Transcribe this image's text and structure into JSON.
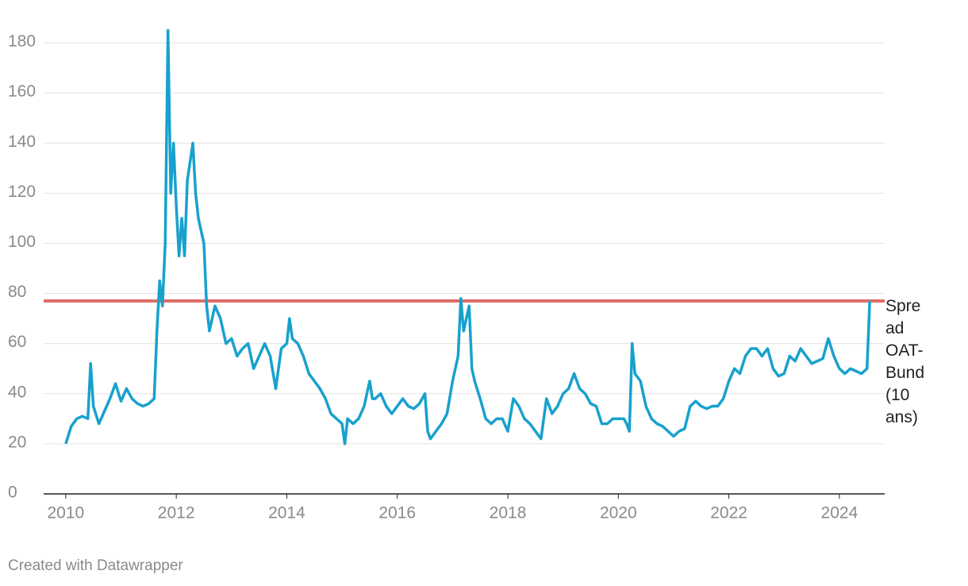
{
  "chart_data": {
    "type": "line",
    "x": [
      2010.0,
      2010.1,
      2010.2,
      2010.3,
      2010.4,
      2010.45,
      2010.5,
      2010.6,
      2010.7,
      2010.8,
      2010.9,
      2011.0,
      2011.1,
      2011.2,
      2011.3,
      2011.4,
      2011.5,
      2011.6,
      2011.65,
      2011.7,
      2011.75,
      2011.8,
      2011.85,
      2011.9,
      2011.95,
      2012.0,
      2012.05,
      2012.1,
      2012.15,
      2012.2,
      2012.3,
      2012.35,
      2012.4,
      2012.5,
      2012.55,
      2012.6,
      2012.7,
      2012.8,
      2012.9,
      2013.0,
      2013.1,
      2013.2,
      2013.3,
      2013.4,
      2013.5,
      2013.6,
      2013.7,
      2013.8,
      2013.9,
      2014.0,
      2014.05,
      2014.1,
      2014.2,
      2014.3,
      2014.4,
      2014.5,
      2014.6,
      2014.7,
      2014.8,
      2014.9,
      2015.0,
      2015.05,
      2015.1,
      2015.2,
      2015.3,
      2015.4,
      2015.5,
      2015.55,
      2015.6,
      2015.7,
      2015.8,
      2015.9,
      2016.0,
      2016.1,
      2016.2,
      2016.3,
      2016.4,
      2016.5,
      2016.55,
      2016.6,
      2016.7,
      2016.8,
      2016.9,
      2017.0,
      2017.1,
      2017.15,
      2017.2,
      2017.3,
      2017.35,
      2017.4,
      2017.5,
      2017.6,
      2017.7,
      2017.8,
      2017.9,
      2018.0,
      2018.1,
      2018.2,
      2018.3,
      2018.4,
      2018.5,
      2018.6,
      2018.7,
      2018.8,
      2018.9,
      2019.0,
      2019.1,
      2019.2,
      2019.3,
      2019.4,
      2019.5,
      2019.6,
      2019.7,
      2019.8,
      2019.9,
      2020.0,
      2020.1,
      2020.15,
      2020.2,
      2020.25,
      2020.3,
      2020.4,
      2020.5,
      2020.6,
      2020.7,
      2020.8,
      2020.9,
      2021.0,
      2021.1,
      2021.2,
      2021.3,
      2021.4,
      2021.5,
      2021.6,
      2021.7,
      2021.8,
      2021.9,
      2022.0,
      2022.1,
      2022.2,
      2022.3,
      2022.4,
      2022.5,
      2022.6,
      2022.7,
      2022.8,
      2022.9,
      2023.0,
      2023.1,
      2023.2,
      2023.3,
      2023.4,
      2023.5,
      2023.6,
      2023.7,
      2023.8,
      2023.9,
      2024.0,
      2024.1,
      2024.2,
      2024.3,
      2024.4,
      2024.5,
      2024.55
    ],
    "series": [
      {
        "name": "Spread OAT-Bund (10 ans)",
        "color": "#18a1cd",
        "values": [
          20,
          27,
          30,
          31,
          30,
          52,
          35,
          28,
          33,
          38,
          44,
          37,
          42,
          38,
          36,
          35,
          36,
          38,
          65,
          85,
          75,
          100,
          185,
          120,
          140,
          115,
          95,
          110,
          95,
          125,
          140,
          120,
          110,
          100,
          75,
          65,
          75,
          70,
          60,
          62,
          55,
          58,
          60,
          50,
          55,
          60,
          55,
          42,
          58,
          60,
          70,
          62,
          60,
          55,
          48,
          45,
          42,
          38,
          32,
          30,
          28,
          20,
          30,
          28,
          30,
          35,
          45,
          38,
          38,
          40,
          35,
          32,
          35,
          38,
          35,
          34,
          36,
          40,
          25,
          22,
          25,
          28,
          32,
          45,
          55,
          78,
          65,
          75,
          50,
          45,
          38,
          30,
          28,
          30,
          30,
          25,
          38,
          35,
          30,
          28,
          25,
          22,
          38,
          32,
          35,
          40,
          42,
          48,
          42,
          40,
          36,
          35,
          28,
          28,
          30,
          30,
          30,
          28,
          25,
          60,
          48,
          45,
          35,
          30,
          28,
          27,
          25,
          23,
          25,
          26,
          35,
          37,
          35,
          34,
          35,
          35,
          38,
          45,
          50,
          48,
          55,
          58,
          58,
          55,
          58,
          50,
          47,
          48,
          55,
          53,
          58,
          55,
          52,
          53,
          54,
          62,
          55,
          50,
          48,
          50,
          49,
          48,
          50,
          77
        ]
      }
    ],
    "reference_line": {
      "value": 77,
      "color": "#de6f6a"
    },
    "xlim": [
      2009.6,
      2024.82
    ],
    "xticks": [
      2010,
      2012,
      2014,
      2016,
      2018,
      2020,
      2022,
      2024
    ],
    "ylim": [
      0,
      180
    ],
    "yticks": [
      0,
      20,
      40,
      60,
      80,
      100,
      120,
      140,
      160,
      180
    ],
    "grid": true,
    "credit": "Created with Datawrapper"
  }
}
